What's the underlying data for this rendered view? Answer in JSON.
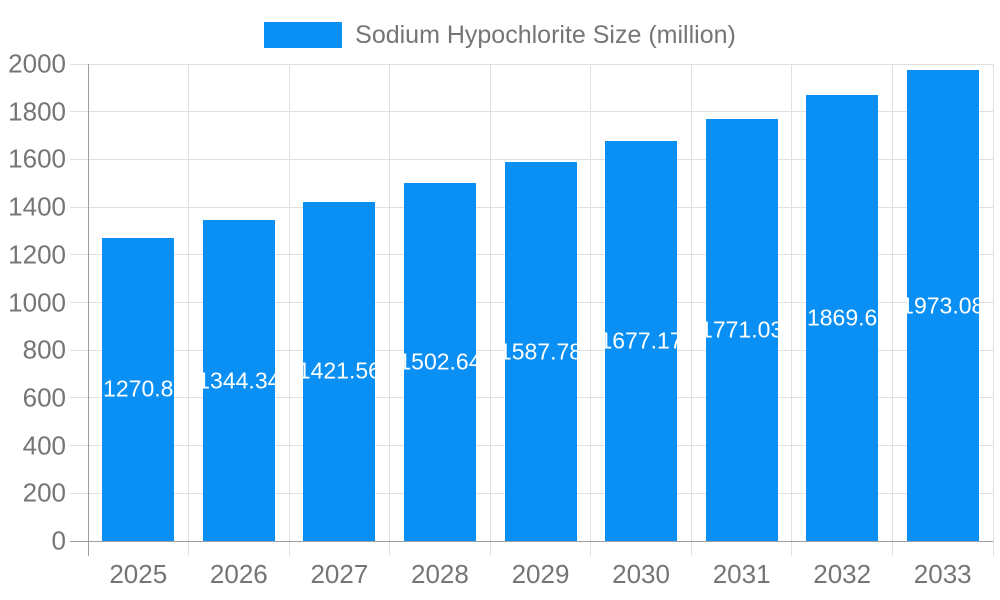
{
  "legend": {
    "label": "Sodium Hypochlorite Size (million)"
  },
  "colors": {
    "bar": "#0a90f5",
    "grid": "#e0e0e0",
    "axis": "#9e9e9e",
    "text": "#757575",
    "bar_label": "#ffffff",
    "background": "#ffffff"
  },
  "chart_data": {
    "type": "bar",
    "title": "Sodium Hypochlorite Size (million)",
    "categories": [
      "2025",
      "2026",
      "2027",
      "2028",
      "2029",
      "2030",
      "2031",
      "2032",
      "2033"
    ],
    "values": [
      1270.8,
      1344.34,
      1421.56,
      1502.64,
      1587.78,
      1677.17,
      1771.03,
      1869.6,
      1973.08
    ],
    "bar_labels": [
      "1270.8",
      "1344.34",
      "1421.56",
      "1502.64",
      "1587.78",
      "1677.17",
      "1771.03",
      "1869.6",
      "1973.08"
    ],
    "xlabel": "",
    "ylabel": "",
    "ylim": [
      0,
      2000
    ],
    "ytick_step": 200,
    "ytick_labels": [
      "0",
      "200",
      "400",
      "600",
      "800",
      "1000",
      "1200",
      "1400",
      "1600",
      "1800",
      "2000"
    ],
    "grid": true,
    "legend_position": "top",
    "bar_label_position": "inside-center"
  }
}
